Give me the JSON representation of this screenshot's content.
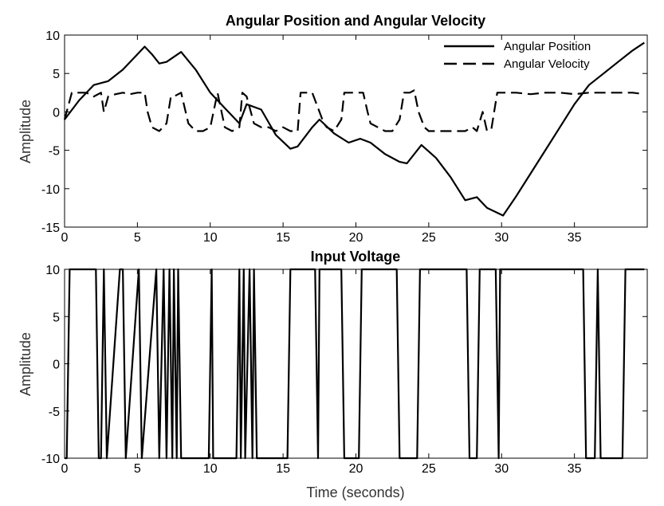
{
  "chart_data": [
    {
      "type": "line",
      "title": "Angular Position and Angular Velocity",
      "xlabel": "",
      "ylabel": "Amplitude",
      "xlim": [
        0,
        40
      ],
      "ylim": [
        -15,
        10
      ],
      "xticks": [
        "0",
        "5",
        "10",
        "15",
        "20",
        "25",
        "30",
        "35"
      ],
      "yticks": [
        "10",
        "5",
        "0",
        "-5",
        "-10",
        "-15"
      ],
      "grid": false,
      "legend_position": "top-right",
      "series": [
        {
          "name": "Angular Position",
          "style": "solid",
          "x": [
            0,
            1,
            2,
            3,
            4,
            5,
            5.5,
            6,
            6.5,
            7,
            8,
            9,
            10,
            11,
            12,
            12.5,
            13.5,
            14.5,
            15.5,
            16,
            17,
            17.5,
            18.5,
            19.5,
            20.3,
            21,
            22,
            23,
            23.5,
            24.5,
            25.5,
            26.5,
            27.5,
            28.3,
            29,
            30.1,
            31,
            32,
            33,
            34,
            35,
            36,
            37,
            38,
            39,
            39.8
          ],
          "y": [
            -1,
            1.5,
            3.5,
            4,
            5.5,
            7.5,
            8.5,
            7.5,
            6.3,
            6.5,
            7.8,
            5.5,
            2.5,
            0.5,
            -1.5,
            1,
            0.3,
            -3,
            -4.8,
            -4.5,
            -2,
            -1,
            -2.8,
            -4,
            -3.5,
            -4,
            -5.5,
            -6.5,
            -6.7,
            -4.3,
            -6,
            -8.5,
            -11.5,
            -11.1,
            -12.5,
            -13.5,
            -11,
            -8,
            -5,
            -2,
            1,
            3.5,
            5,
            6.5,
            8,
            9
          ]
        },
        {
          "name": "Angular Velocity",
          "style": "dashed",
          "x": [
            0,
            0.5,
            1,
            1.5,
            2,
            2.5,
            2.7,
            3,
            3.5,
            4,
            4.5,
            5,
            5.5,
            5.7,
            6,
            6.5,
            7,
            7.3,
            7.5,
            8,
            8.5,
            9,
            9.5,
            10,
            10.5,
            11,
            11.5,
            12,
            12.2,
            12.5,
            13,
            13.5,
            14,
            14.5,
            15,
            15.5,
            16,
            16.2,
            16.7,
            17,
            17.5,
            17.8,
            18,
            18.5,
            19,
            19.2,
            19.7,
            20,
            20.5,
            20.8,
            21,
            21.5,
            22,
            22.5,
            23,
            23.3,
            23.7,
            24,
            24.3,
            24.7,
            25,
            25.5,
            26,
            26.5,
            27,
            27.5,
            28,
            28.3,
            28.7,
            29,
            29.3,
            29.7,
            30,
            30.3,
            31,
            32,
            33,
            34,
            35,
            36,
            37,
            38,
            39,
            39.8
          ],
          "y": [
            -1,
            2.5,
            2.5,
            2.5,
            2,
            2.5,
            0,
            2,
            2.3,
            2.5,
            2.3,
            2.5,
            2.5,
            0,
            -2,
            -2.5,
            -1.5,
            2,
            2,
            2.5,
            -1.5,
            -2.5,
            -2.5,
            -2,
            2.5,
            -2,
            -2.5,
            -2,
            2.5,
            2,
            -1.5,
            -2,
            -2,
            -2.5,
            -2,
            -2.5,
            -2.5,
            2.5,
            2.5,
            2.5,
            0,
            -1.5,
            -2,
            -2.5,
            -1,
            2.5,
            2.5,
            2.5,
            2.5,
            0,
            -1.5,
            -2,
            -2.5,
            -2.5,
            -1,
            2.5,
            2.5,
            2.8,
            0,
            -2,
            -2.5,
            -2.5,
            -2.5,
            -2.5,
            -2.5,
            -2.5,
            -2,
            -2.5,
            0,
            -2.5,
            -2.2,
            2.5,
            2.5,
            2.5,
            2.5,
            2.3,
            2.5,
            2.5,
            2.3,
            2.5,
            2.5,
            2.5,
            2.5,
            2.3
          ]
        }
      ]
    },
    {
      "type": "line",
      "title": "Input Voltage",
      "xlabel": "Time (seconds)",
      "ylabel": "Amplitude",
      "xlim": [
        0,
        40
      ],
      "ylim": [
        -10,
        10
      ],
      "xticks": [
        "0",
        "5",
        "10",
        "15",
        "20",
        "25",
        "30",
        "35"
      ],
      "yticks": [
        "10",
        "5",
        "0",
        "-5",
        "-10"
      ],
      "grid": false,
      "series": [
        {
          "name": "",
          "style": "solid",
          "x": [
            0,
            0.15,
            0.35,
            2.15,
            2.35,
            2.5,
            2.7,
            2.9,
            3.8,
            4.0,
            4.2,
            5.1,
            5.3,
            6.3,
            6.5,
            6.8,
            7.0,
            7.2,
            7.4,
            7.5,
            7.7,
            7.8,
            8.0,
            9.9,
            10.1,
            10.2,
            11.8,
            12.0,
            12.1,
            12.3,
            12.4,
            12.7,
            12.9,
            13.0,
            13.2,
            15.3,
            15.5,
            17.2,
            17.4,
            17.5,
            19.0,
            19.2,
            20.2,
            20.4,
            22.8,
            23.0,
            24.2,
            24.4,
            27.6,
            27.8,
            28.3,
            28.5,
            29.6,
            29.8,
            29.9,
            35.6,
            35.8,
            36.4,
            36.6,
            36.8,
            38.3,
            38.5,
            39.8
          ],
          "y": [
            -10,
            -10,
            10,
            10,
            -10,
            -10,
            10,
            -10,
            10,
            10,
            -10,
            10,
            -10,
            10,
            -10,
            10,
            -10,
            10,
            -10,
            10,
            -10,
            10,
            -10,
            -10,
            10,
            -10,
            -10,
            10,
            -10,
            10,
            -10,
            10,
            -10,
            10,
            -10,
            -10,
            10,
            10,
            -10,
            10,
            10,
            -10,
            -10,
            10,
            10,
            -10,
            -10,
            10,
            10,
            -10,
            -10,
            10,
            10,
            -10,
            10,
            10,
            -10,
            -10,
            10,
            -10,
            -10,
            10,
            10
          ]
        }
      ]
    }
  ]
}
